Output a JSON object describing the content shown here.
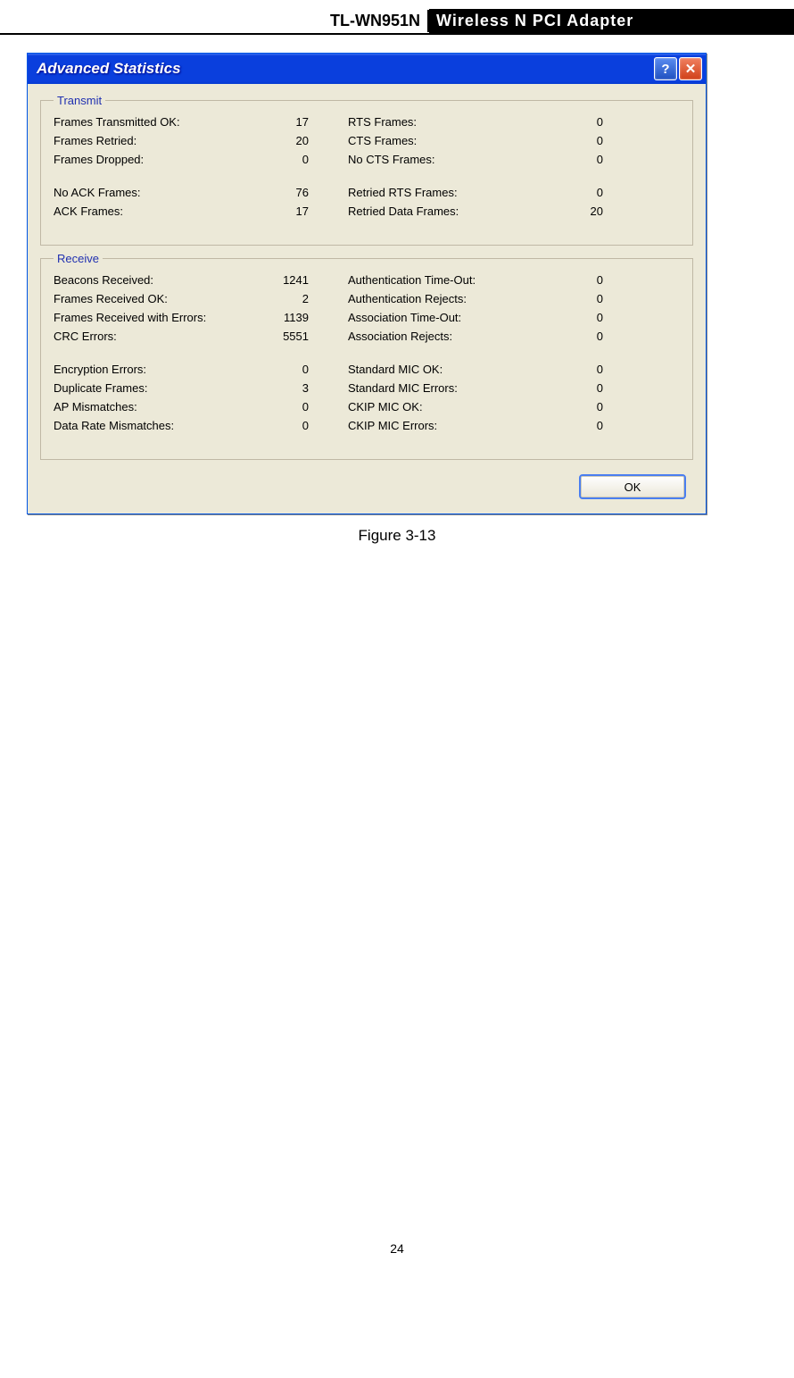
{
  "header": {
    "model": "TL-WN951N",
    "product": "Wireless N PCI Adapter"
  },
  "dialog": {
    "title": "Advanced Statistics",
    "help_symbol": "?",
    "close_symbol": "✕",
    "ok_label": "OK"
  },
  "transmit": {
    "legend": "Transmit",
    "rows": [
      {
        "l": "Frames Transmitted OK:",
        "lv": "17",
        "r": "RTS Frames:",
        "rv": "0"
      },
      {
        "l": "Frames Retried:",
        "lv": "20",
        "r": "CTS Frames:",
        "rv": "0"
      },
      {
        "l": "Frames Dropped:",
        "lv": "0",
        "r": "No CTS Frames:",
        "rv": "0"
      }
    ],
    "rows2": [
      {
        "l": "No ACK Frames:",
        "lv": "76",
        "r": "Retried RTS Frames:",
        "rv": "0"
      },
      {
        "l": "ACK Frames:",
        "lv": "17",
        "r": "Retried Data Frames:",
        "rv": "20"
      }
    ]
  },
  "receive": {
    "legend": "Receive",
    "rows": [
      {
        "l": "Beacons Received:",
        "lv": "1241",
        "r": "Authentication Time-Out:",
        "rv": "0"
      },
      {
        "l": "Frames Received OK:",
        "lv": "2",
        "r": "Authentication Rejects:",
        "rv": "0"
      },
      {
        "l": "Frames Received with Errors:",
        "lv": "1139",
        "r": "Association Time-Out:",
        "rv": "0"
      },
      {
        "l": "CRC Errors:",
        "lv": "5551",
        "r": "Association Rejects:",
        "rv": "0"
      }
    ],
    "rows2": [
      {
        "l": "Encryption Errors:",
        "lv": "0",
        "r": "Standard MIC OK:",
        "rv": "0"
      },
      {
        "l": "Duplicate Frames:",
        "lv": "3",
        "r": "Standard MIC Errors:",
        "rv": "0"
      },
      {
        "l": "AP Mismatches:",
        "lv": "0",
        "r": "CKIP MIC OK:",
        "rv": "0"
      },
      {
        "l": "Data Rate Mismatches:",
        "lv": "0",
        "r": "CKIP MIC Errors:",
        "rv": "0"
      }
    ]
  },
  "caption": "Figure 3-13",
  "page_number": "24",
  "colors": {
    "titlebar_bg": "#0a3fdd",
    "panel_bg": "#ece9d8",
    "legend_text": "#2030b0",
    "ok_border": "#4a7ef0"
  }
}
